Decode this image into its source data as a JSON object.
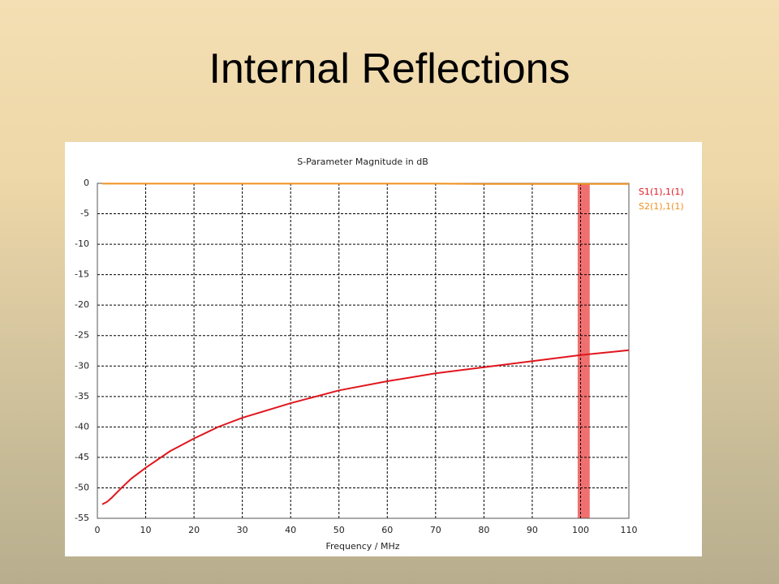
{
  "slide_title": "Internal Reflections",
  "chart_data": {
    "type": "line",
    "title": "S-Parameter Magnitude in dB",
    "x_label": "Frequency / MHz",
    "x": [
      1,
      2,
      3,
      5,
      7,
      10,
      15,
      20,
      25,
      30,
      40,
      50,
      60,
      70,
      80,
      90,
      100,
      110
    ],
    "series": [
      {
        "name": "S1(1),1(1)",
        "color": "#e0161d",
        "values": [
          -52.7,
          -52.3,
          -51.6,
          -50.0,
          -48.5,
          -46.7,
          -44.0,
          -41.9,
          -40.0,
          -38.5,
          -36.1,
          -34.0,
          -32.5,
          -31.2,
          -30.2,
          -29.2,
          -28.2,
          -27.4
        ]
      },
      {
        "name": "S2(1),1(1)",
        "color": "#f0901e",
        "values": [
          -0.05,
          -0.05,
          -0.05,
          -0.05,
          -0.05,
          -0.05,
          -0.05,
          -0.05,
          -0.05,
          -0.05,
          -0.05,
          -0.05,
          -0.05,
          -0.05,
          -0.1,
          -0.1,
          -0.1,
          -0.1
        ]
      }
    ],
    "highlight_band": [
      99.4,
      101.9
    ],
    "highlight_color": "#f07070",
    "xlim": [
      0,
      110
    ],
    "xticks": [
      0,
      10,
      20,
      30,
      40,
      50,
      60,
      70,
      80,
      90,
      100,
      110
    ],
    "ylim": [
      -55,
      0
    ],
    "yticks": [
      0,
      -5,
      -10,
      -15,
      -20,
      -25,
      -30,
      -35,
      -40,
      -45,
      -50,
      -55
    ],
    "grid": true
  }
}
